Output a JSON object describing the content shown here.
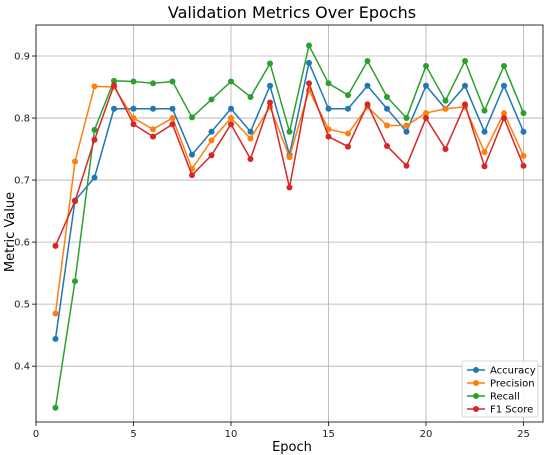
{
  "chart_data": {
    "type": "line",
    "title": "Validation Metrics Over Epochs",
    "xlabel": "Epoch",
    "ylabel": "Metric Value",
    "xlim": [
      0,
      26
    ],
    "ylim": [
      0.31,
      0.95
    ],
    "xticks": [
      0,
      5,
      10,
      15,
      20,
      25
    ],
    "yticks": [
      0.4,
      0.5,
      0.6,
      0.7,
      0.8,
      0.9
    ],
    "xtick_labels": [
      "0",
      "5",
      "10",
      "15",
      "20",
      "25"
    ],
    "ytick_labels": [
      "0.4",
      "0.5",
      "0.6",
      "0.7",
      "0.8",
      "0.9"
    ],
    "grid": true,
    "legend_position": "bottom-right",
    "x": [
      1,
      2,
      3,
      4,
      5,
      6,
      7,
      8,
      9,
      10,
      11,
      12,
      13,
      14,
      15,
      16,
      17,
      18,
      19,
      20,
      21,
      22,
      23,
      24,
      25
    ],
    "series": [
      {
        "name": "Accuracy",
        "color": "#1f77b4",
        "values": [
          0.444,
          0.667,
          0.704,
          0.815,
          0.815,
          0.815,
          0.815,
          0.741,
          0.778,
          0.815,
          0.778,
          0.852,
          0.741,
          0.889,
          0.815,
          0.815,
          0.852,
          0.815,
          0.778,
          0.852,
          0.815,
          0.852,
          0.778,
          0.852,
          0.778
        ]
      },
      {
        "name": "Precision",
        "color": "#ff7f0e",
        "values": [
          0.485,
          0.73,
          0.851,
          0.85,
          0.8,
          0.782,
          0.8,
          0.718,
          0.764,
          0.8,
          0.767,
          0.818,
          0.737,
          0.845,
          0.782,
          0.775,
          0.818,
          0.788,
          0.788,
          0.808,
          0.815,
          0.818,
          0.745,
          0.808,
          0.739
        ]
      },
      {
        "name": "Recall",
        "color": "#2ca02c",
        "values": [
          0.333,
          0.537,
          0.781,
          0.86,
          0.859,
          0.856,
          0.859,
          0.801,
          0.83,
          0.859,
          0.834,
          0.888,
          0.778,
          0.917,
          0.856,
          0.837,
          0.892,
          0.834,
          0.8,
          0.884,
          0.828,
          0.892,
          0.812,
          0.884,
          0.808
        ]
      },
      {
        "name": "F1 Score",
        "color": "#d62728",
        "values": [
          0.594,
          0.666,
          0.765,
          0.853,
          0.79,
          0.77,
          0.79,
          0.708,
          0.74,
          0.79,
          0.734,
          0.825,
          0.688,
          0.856,
          0.77,
          0.754,
          0.822,
          0.755,
          0.723,
          0.8,
          0.75,
          0.822,
          0.722,
          0.8,
          0.723
        ]
      }
    ]
  }
}
